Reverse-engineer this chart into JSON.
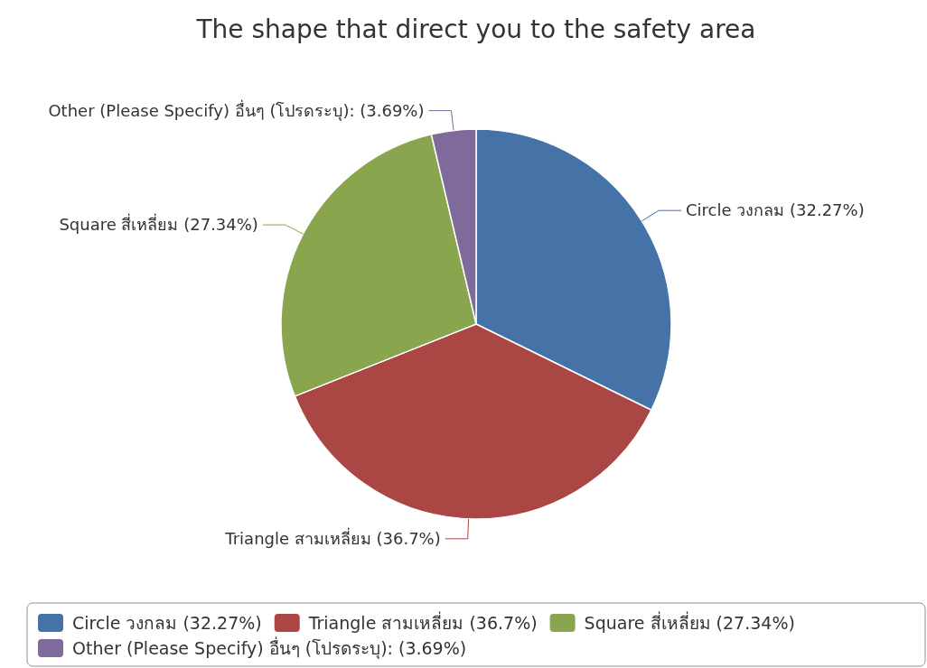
{
  "chart_data": {
    "type": "pie",
    "title": "The shape that direct you to the safety area",
    "categories": [
      "Circle วงกลม (32.27%)",
      "Triangle สามเหลี่ยม (36.7%)",
      "Square สี่เหลี่ยม (27.34%)",
      "Other (Please Specify) อื่นๆ (โปรดระบุ): (3.69%)"
    ],
    "values": [
      32.27,
      36.7,
      27.34,
      3.69
    ],
    "colors": [
      "#4572a7",
      "#aa4643",
      "#89a54e",
      "#80699b"
    ],
    "legend": "bottom"
  }
}
